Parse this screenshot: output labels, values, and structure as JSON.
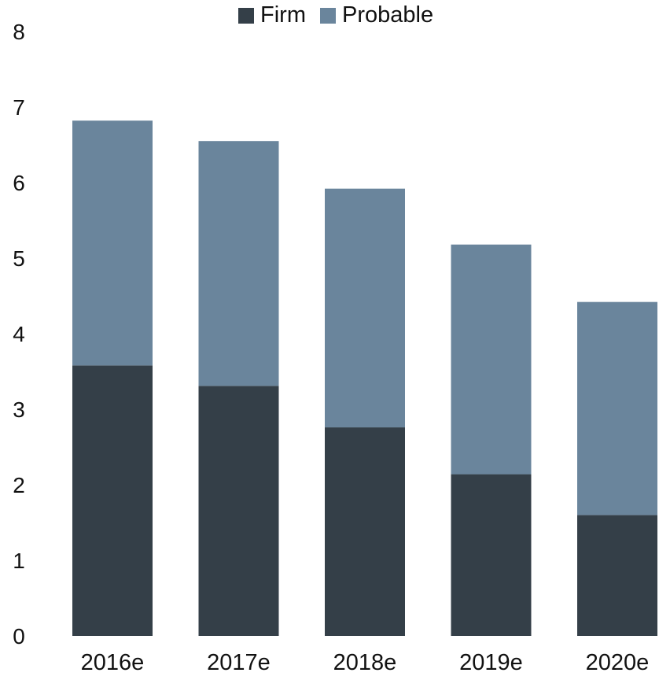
{
  "chart_data": {
    "type": "bar",
    "stacked": true,
    "categories": [
      "2016e",
      "2017e",
      "2018e",
      "2019e",
      "2020e"
    ],
    "series": [
      {
        "name": "Firm",
        "color": "#343f48",
        "values": [
          3.58,
          3.31,
          2.76,
          2.14,
          1.6
        ]
      },
      {
        "name": "Probable",
        "color": "#6a859c",
        "values": [
          3.24,
          3.24,
          3.16,
          3.04,
          2.82
        ]
      }
    ],
    "ylim": [
      0,
      8
    ],
    "yticks": [
      "0",
      "1",
      "2",
      "3",
      "4",
      "5",
      "6",
      "7",
      "8"
    ],
    "grid": false,
    "legend_position": "top-center"
  }
}
